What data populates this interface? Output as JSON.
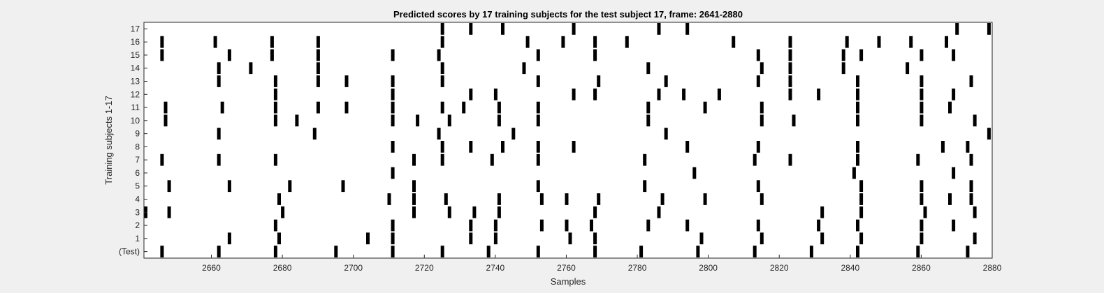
{
  "chart_data": {
    "type": "raster",
    "title": "Predicted scores by 17 training subjects for the test subject 17, frame: 2641-2880",
    "xlabel": "Samples",
    "ylabel": "Training subjects 1-17",
    "xlim": [
      2641,
      2880
    ],
    "xticks": [
      2660,
      2680,
      2700,
      2720,
      2740,
      2760,
      2780,
      2800,
      2820,
      2840,
      2860,
      2880
    ],
    "yticklabels": [
      "(Test)",
      "1",
      "2",
      "3",
      "4",
      "5",
      "6",
      "7",
      "8",
      "9",
      "10",
      "11",
      "12",
      "13",
      "14",
      "15",
      "16",
      "17"
    ],
    "grid": false,
    "mark_color": "#000000",
    "rows": [
      {
        "label": "(Test)",
        "x": [
          2646,
          2662,
          2678,
          2695,
          2711,
          2725,
          2738,
          2752,
          2768,
          2781,
          2797,
          2813,
          2829,
          2842,
          2859,
          2873
        ]
      },
      {
        "label": "1",
        "x": [
          2665,
          2679,
          2704,
          2711,
          2733,
          2740,
          2761,
          2768,
          2798,
          2815,
          2832,
          2843,
          2860,
          2875
        ]
      },
      {
        "label": "2",
        "x": [
          2678,
          2711,
          2733,
          2740,
          2753,
          2760,
          2767,
          2783,
          2794,
          2814,
          2831,
          2842,
          2860,
          2869
        ]
      },
      {
        "label": "3",
        "x": [
          2641,
          2648,
          2680,
          2717,
          2727,
          2734,
          2741,
          2768,
          2786,
          2832,
          2843,
          2861,
          2875
        ]
      },
      {
        "label": "4",
        "x": [
          2679,
          2710,
          2717,
          2726,
          2741,
          2753,
          2760,
          2769,
          2787,
          2799,
          2815,
          2843,
          2860,
          2868,
          2874
        ]
      },
      {
        "label": "5",
        "x": [
          2648,
          2665,
          2682,
          2697,
          2717,
          2752,
          2782,
          2814,
          2843,
          2860,
          2874
        ]
      },
      {
        "label": "6",
        "x": [
          2711,
          2796,
          2841,
          2869
        ]
      },
      {
        "label": "7",
        "x": [
          2646,
          2662,
          2678,
          2717,
          2725,
          2739,
          2752,
          2782,
          2813,
          2823,
          2842,
          2859,
          2874
        ]
      },
      {
        "label": "8",
        "x": [
          2711,
          2725,
          2733,
          2742,
          2752,
          2762,
          2794,
          2814,
          2842,
          2866,
          2873
        ]
      },
      {
        "label": "9",
        "x": [
          2662,
          2689,
          2724,
          2745,
          2788,
          2879
        ]
      },
      {
        "label": "10",
        "x": [
          2647,
          2678,
          2684,
          2711,
          2718,
          2727,
          2741,
          2752,
          2783,
          2815,
          2824,
          2842,
          2860,
          2875
        ]
      },
      {
        "label": "11",
        "x": [
          2647,
          2663,
          2678,
          2690,
          2698,
          2711,
          2725,
          2731,
          2741,
          2752,
          2783,
          2799,
          2815,
          2842,
          2860,
          2868
        ]
      },
      {
        "label": "12",
        "x": [
          2678,
          2711,
          2733,
          2740,
          2762,
          2768,
          2786,
          2793,
          2803,
          2823,
          2831,
          2842,
          2860,
          2869
        ]
      },
      {
        "label": "13",
        "x": [
          2662,
          2678,
          2690,
          2698,
          2711,
          2725,
          2752,
          2769,
          2788,
          2814,
          2823,
          2842,
          2860,
          2874
        ]
      },
      {
        "label": "14",
        "x": [
          2662,
          2671,
          2690,
          2725,
          2748,
          2783,
          2815,
          2823,
          2838,
          2856
        ]
      },
      {
        "label": "15",
        "x": [
          2646,
          2665,
          2677,
          2690,
          2711,
          2724,
          2752,
          2768,
          2814,
          2823,
          2838,
          2843,
          2860,
          2869
        ]
      },
      {
        "label": "16",
        "x": [
          2646,
          2661,
          2677,
          2690,
          2725,
          2749,
          2759,
          2768,
          2777,
          2807,
          2823,
          2839,
          2848,
          2857,
          2867
        ]
      },
      {
        "label": "17",
        "x": [
          2725,
          2733,
          2742,
          2762,
          2786,
          2794,
          2870,
          2879
        ]
      }
    ]
  }
}
